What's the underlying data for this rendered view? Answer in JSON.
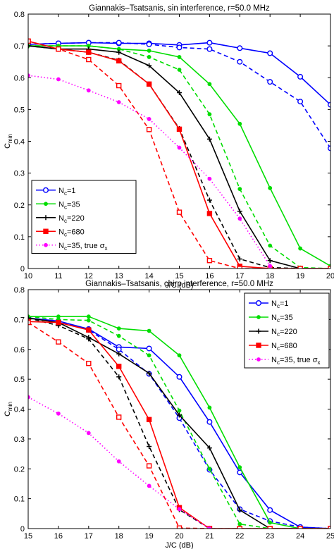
{
  "chart_data": [
    {
      "type": "line",
      "title": "Giannakis–Tsatsanis, sin interference, r=50.0 MHz",
      "xlabel": "J/C (dB)",
      "ylabel": "C",
      "ylabel_sub": "min",
      "xlim": [
        10,
        20
      ],
      "ylim": [
        0,
        0.8
      ],
      "xticks": [
        10,
        11,
        12,
        13,
        14,
        15,
        16,
        17,
        18,
        19,
        20
      ],
      "yticks": [
        0,
        0.1,
        0.2,
        0.3,
        0.4,
        0.5,
        0.6,
        0.7,
        0.8
      ],
      "legend_position": "bottom-left",
      "legend": [
        {
          "pre": "N",
          "sub": "c",
          "post": "=1",
          "extra": "",
          "sigma_sub": ""
        },
        {
          "pre": "N",
          "sub": "c",
          "post": "=35",
          "extra": "",
          "sigma_sub": ""
        },
        {
          "pre": "N",
          "sub": "c",
          "post": "=220",
          "extra": "",
          "sigma_sub": ""
        },
        {
          "pre": "N",
          "sub": "c",
          "post": "=680",
          "extra": "",
          "sigma_sub": ""
        },
        {
          "pre": "N",
          "sub": "c",
          "post": "=35, true σ",
          "extra": "",
          "sigma_sub": "x"
        }
      ],
      "series": [
        {
          "color": "#0000ff",
          "style": "solid",
          "marker": "circle",
          "filled": false,
          "x": [
            10,
            11,
            12,
            13,
            14,
            15,
            16,
            17,
            18,
            19,
            20
          ],
          "y": [
            0.705,
            0.708,
            0.71,
            0.708,
            0.708,
            0.703,
            0.71,
            0.693,
            0.677,
            0.603,
            0.515
          ]
        },
        {
          "color": "#0000ff",
          "style": "dashed",
          "marker": "circle",
          "filled": false,
          "x": [
            10,
            11,
            12,
            13,
            14,
            15,
            16,
            17,
            18,
            19,
            20
          ],
          "y": [
            0.705,
            0.708,
            0.71,
            0.71,
            0.705,
            0.695,
            0.69,
            0.65,
            0.587,
            0.525,
            0.378
          ]
        },
        {
          "color": "#00dd00",
          "style": "solid",
          "marker": "dot",
          "filled": true,
          "x": [
            10,
            11,
            12,
            13,
            14,
            15,
            16,
            17,
            18,
            19,
            20
          ],
          "y": [
            0.7,
            0.7,
            0.7,
            0.69,
            0.685,
            0.665,
            0.58,
            0.455,
            0.253,
            0.063,
            0.008
          ]
        },
        {
          "color": "#00dd00",
          "style": "dashed",
          "marker": "dot",
          "filled": true,
          "x": [
            10,
            11,
            12,
            13,
            14,
            15,
            16,
            17,
            18,
            19,
            20
          ],
          "y": [
            0.7,
            0.7,
            0.7,
            0.69,
            0.665,
            0.625,
            0.485,
            0.25,
            0.072,
            0.003,
            0.0
          ]
        },
        {
          "color": "#000000",
          "style": "solid",
          "marker": "plus",
          "filled": false,
          "x": [
            10,
            11,
            12,
            13,
            14,
            15,
            16,
            17,
            18,
            19,
            20
          ],
          "y": [
            0.7,
            0.69,
            0.69,
            0.68,
            0.638,
            0.553,
            0.407,
            0.18,
            0.025,
            0.0,
            0.0
          ]
        },
        {
          "color": "#000000",
          "style": "dashed",
          "marker": "plus",
          "filled": false,
          "x": [
            10,
            11,
            12,
            13,
            14,
            15,
            16,
            17,
            18,
            19,
            20
          ],
          "y": [
            0.7,
            0.69,
            0.68,
            0.655,
            0.58,
            0.44,
            0.215,
            0.03,
            0.003,
            0.0,
            0.0
          ]
        },
        {
          "color": "#ff0000",
          "style": "solid",
          "marker": "square",
          "filled": true,
          "x": [
            10,
            11,
            12,
            13,
            14,
            15,
            16,
            17,
            18,
            19,
            20
          ],
          "y": [
            0.715,
            0.69,
            0.68,
            0.653,
            0.58,
            0.438,
            0.173,
            0.007,
            0.0,
            0.0,
            0.0
          ]
        },
        {
          "color": "#ff0000",
          "style": "dashed",
          "marker": "square",
          "filled": false,
          "x": [
            10,
            11,
            12,
            13,
            14,
            15,
            16,
            17,
            18,
            19,
            20
          ],
          "y": [
            0.715,
            0.69,
            0.657,
            0.575,
            0.437,
            0.177,
            0.025,
            0.0,
            0.0,
            0.0,
            0.0
          ]
        },
        {
          "color": "#ff00ff",
          "style": "dotted",
          "marker": "dot",
          "filled": true,
          "x": [
            10,
            11,
            12,
            13,
            14,
            15,
            16,
            17,
            18
          ],
          "y": [
            0.607,
            0.595,
            0.56,
            0.523,
            0.47,
            0.38,
            0.282,
            0.157,
            0.008
          ]
        }
      ]
    },
    {
      "type": "line",
      "title": "Giannakis–Tsatsanis, chirp interference, r=50.0 MHz",
      "xlabel": "J/C (dB)",
      "ylabel": "C",
      "ylabel_sub": "min",
      "xlim": [
        15,
        25
      ],
      "ylim": [
        0,
        0.8
      ],
      "xticks": [
        15,
        16,
        17,
        18,
        19,
        20,
        21,
        22,
        23,
        24,
        25
      ],
      "yticks": [
        0,
        0.1,
        0.2,
        0.3,
        0.4,
        0.5,
        0.6,
        0.7,
        0.8
      ],
      "legend_position": "top-right",
      "legend": [
        {
          "pre": "N",
          "sub": "c",
          "post": "=1",
          "extra": "",
          "sigma_sub": ""
        },
        {
          "pre": "N",
          "sub": "c",
          "post": "=35",
          "extra": "",
          "sigma_sub": ""
        },
        {
          "pre": "N",
          "sub": "c",
          "post": "=220",
          "extra": "",
          "sigma_sub": ""
        },
        {
          "pre": "N",
          "sub": "c",
          "post": "=680",
          "extra": "",
          "sigma_sub": ""
        },
        {
          "pre": "N",
          "sub": "c",
          "post": "=35, true σ",
          "extra": "",
          "sigma_sub": "x"
        }
      ],
      "series": [
        {
          "color": "#0000ff",
          "style": "solid",
          "marker": "circle",
          "filled": false,
          "x": [
            15,
            16,
            17,
            18,
            19,
            20,
            21,
            22,
            23,
            24,
            25
          ],
          "y": [
            0.705,
            0.695,
            0.668,
            0.608,
            0.603,
            0.508,
            0.357,
            0.188,
            0.062,
            0.005,
            0.0
          ]
        },
        {
          "color": "#0000ff",
          "style": "dashed",
          "marker": "circle",
          "filled": false,
          "x": [
            15,
            16,
            17,
            18,
            19,
            20,
            21,
            22,
            23,
            24,
            25
          ],
          "y": [
            0.705,
            0.695,
            0.665,
            0.6,
            0.518,
            0.37,
            0.197,
            0.065,
            0.025,
            0.005,
            0.0
          ]
        },
        {
          "color": "#00dd00",
          "style": "solid",
          "marker": "dot",
          "filled": true,
          "x": [
            15,
            16,
            17,
            18,
            19,
            20,
            21,
            22,
            23,
            24,
            25
          ],
          "y": [
            0.71,
            0.71,
            0.71,
            0.67,
            0.662,
            0.58,
            0.405,
            0.205,
            0.02,
            0.0,
            0.0
          ]
        },
        {
          "color": "#00dd00",
          "style": "dashed",
          "marker": "dot",
          "filled": true,
          "x": [
            15,
            16,
            17,
            18,
            19,
            20,
            21,
            22,
            23,
            24,
            25
          ],
          "y": [
            0.71,
            0.7,
            0.697,
            0.645,
            0.58,
            0.395,
            0.2,
            0.015,
            0.0,
            0.0,
            0.0
          ]
        },
        {
          "color": "#000000",
          "style": "solid",
          "marker": "plus",
          "filled": false,
          "x": [
            15,
            16,
            17,
            18,
            19,
            20,
            21,
            22,
            23,
            24,
            25
          ],
          "y": [
            0.705,
            0.69,
            0.64,
            0.585,
            0.52,
            0.38,
            0.27,
            0.062,
            0.0,
            0.0,
            0.0
          ]
        },
        {
          "color": "#000000",
          "style": "dashed",
          "marker": "plus",
          "filled": false,
          "x": [
            15,
            16,
            17,
            18,
            19,
            20,
            21,
            22,
            23,
            24,
            25
          ],
          "y": [
            0.705,
            0.68,
            0.635,
            0.508,
            0.275,
            0.063,
            0.0,
            0.0,
            0.0,
            0.0,
            0.0
          ]
        },
        {
          "color": "#ff0000",
          "style": "solid",
          "marker": "square",
          "filled": true,
          "x": [
            15,
            16,
            17,
            18,
            19,
            20,
            21,
            22,
            23,
            24,
            25
          ],
          "y": [
            0.693,
            0.69,
            0.665,
            0.543,
            0.365,
            0.07,
            0.0,
            0.0,
            0.0,
            0.0,
            0.0
          ]
        },
        {
          "color": "#ff0000",
          "style": "dashed",
          "marker": "square",
          "filled": false,
          "x": [
            15,
            16,
            17,
            18,
            19,
            20,
            21,
            22,
            23,
            24,
            25
          ],
          "y": [
            0.69,
            0.625,
            0.553,
            0.373,
            0.21,
            0.002,
            0.0,
            0.0,
            0.0,
            0.0,
            0.0
          ]
        },
        {
          "color": "#ff00ff",
          "style": "dotted",
          "marker": "dot",
          "filled": true,
          "x": [
            15,
            16,
            17,
            18,
            19,
            20,
            21
          ],
          "y": [
            0.44,
            0.385,
            0.32,
            0.225,
            0.143,
            0.065,
            0.0
          ]
        }
      ]
    }
  ]
}
